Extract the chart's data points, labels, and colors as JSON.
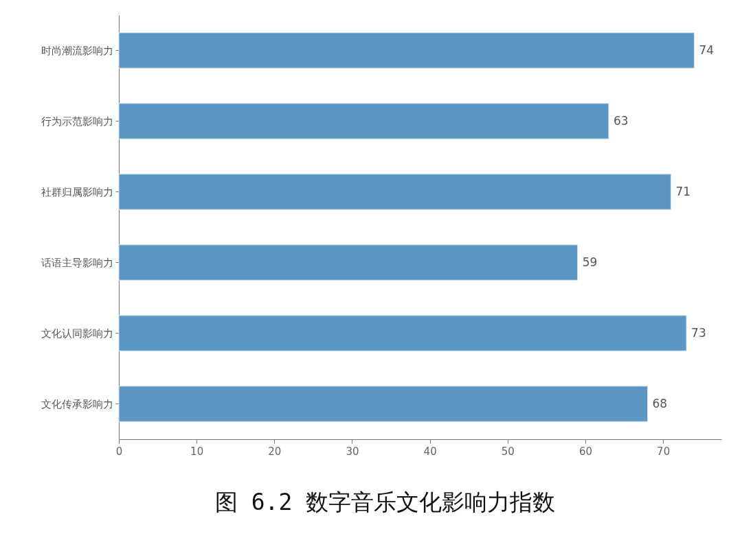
{
  "chart_data": {
    "type": "bar",
    "orientation": "horizontal",
    "title": "图 6.2 数字音乐文化影响力指数",
    "categories": [
      "时尚潮流影响力",
      "行为示范影响力",
      "社群归属影响力",
      "话语主导影响力",
      "文化认同影响力",
      "文化传承影响力"
    ],
    "values": [
      74,
      63,
      71,
      59,
      73,
      68
    ],
    "color": "#5b96c3",
    "xlim": [
      0,
      77.5
    ],
    "xticks": [
      0,
      10,
      20,
      30,
      40,
      50,
      60,
      70
    ],
    "data_labels": true
  }
}
